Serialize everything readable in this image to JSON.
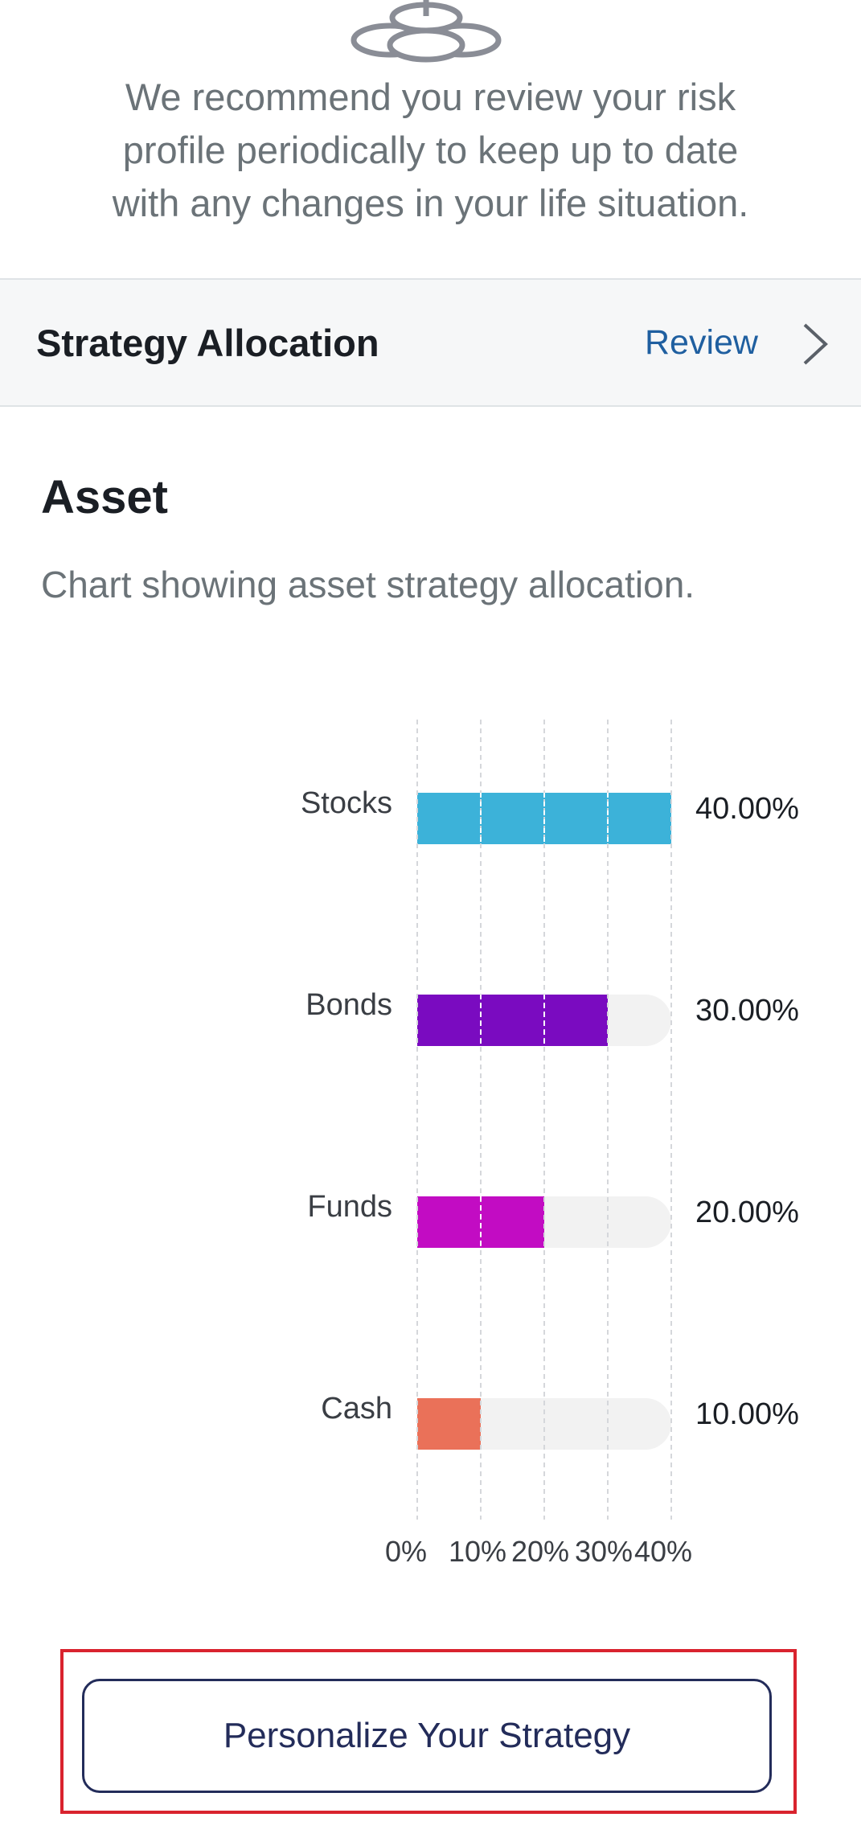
{
  "intro": {
    "line1": "We recommend you review your risk",
    "line2": "profile periodically to keep up to date",
    "line3": "with any changes in your life situation."
  },
  "strategy": {
    "title": "Strategy Allocation",
    "review_label": "Review"
  },
  "asset": {
    "title": "Asset",
    "description": "Chart showing asset strategy allocation."
  },
  "chart_data": {
    "type": "bar",
    "orientation": "horizontal",
    "categories": [
      "Stocks",
      "Bonds",
      "Funds",
      "Cash"
    ],
    "values": [
      40,
      30,
      20,
      10
    ],
    "value_labels": [
      "40.00%",
      "30.00%",
      "20.00%",
      "10.00%"
    ],
    "colors": [
      "#3cb2d9",
      "#7a0bc0",
      "#c20cc3",
      "#ea7159"
    ],
    "track_color": "#f2f2f2",
    "xlim": [
      0,
      40
    ],
    "xticks": [
      "0%",
      "10%",
      "20%",
      "30%",
      "40%"
    ],
    "grid": true,
    "title": "",
    "xlabel": "",
    "ylabel": ""
  },
  "cta": {
    "label": "Personalize Your Strategy"
  },
  "colors": {
    "link": "#1f5fa0",
    "button_border": "#232c5a",
    "highlight": "#d9232e"
  }
}
